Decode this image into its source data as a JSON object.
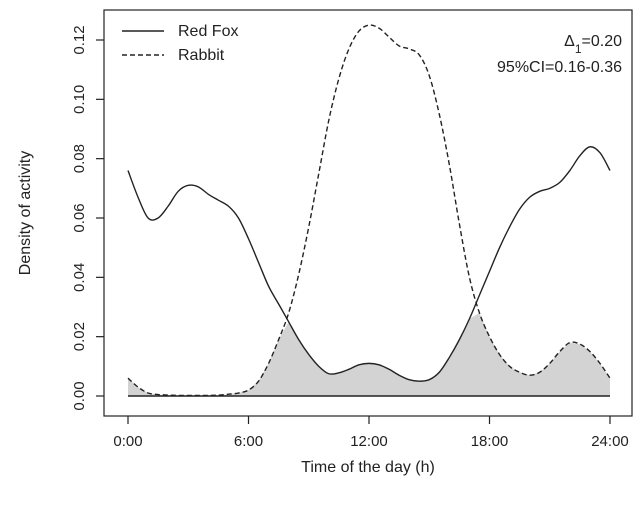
{
  "chart_data": {
    "type": "line",
    "title": "",
    "xlabel": "Time of the day (h)",
    "ylabel": "Density of activity",
    "xlim": [
      0,
      24
    ],
    "ylim": [
      0,
      0.125
    ],
    "x_ticks": [
      0,
      6,
      12,
      18,
      24
    ],
    "x_tick_labels": [
      "0:00",
      "6:00",
      "12:00",
      "18:00",
      "24:00"
    ],
    "y_ticks": [
      0,
      0.02,
      0.04,
      0.06,
      0.08,
      0.1,
      0.12
    ],
    "y_tick_labels": [
      "0.00",
      "0.02",
      "0.04",
      "0.06",
      "0.08",
      "0.10",
      "0.12"
    ],
    "grid": false,
    "legend_position": "top-left",
    "overlap_fill_color": "#d3d3d3",
    "line_color": "#222222",
    "series": [
      {
        "name": "Red Fox",
        "line_style": "solid",
        "x": [
          0,
          0.5,
          1,
          1.5,
          2,
          2.5,
          3,
          3.5,
          4,
          4.5,
          5,
          5.5,
          6,
          6.5,
          7,
          7.5,
          8,
          8.5,
          9,
          9.5,
          10,
          10.5,
          11,
          11.5,
          12,
          12.5,
          13,
          13.5,
          14,
          14.5,
          15,
          15.5,
          16,
          16.5,
          17,
          17.5,
          18,
          18.5,
          19,
          19.5,
          20,
          20.5,
          21,
          21.5,
          22,
          22.5,
          23,
          23.5,
          24
        ],
        "y": [
          0.076,
          0.067,
          0.06,
          0.06,
          0.064,
          0.069,
          0.071,
          0.0705,
          0.068,
          0.066,
          0.064,
          0.06,
          0.053,
          0.045,
          0.037,
          0.031,
          0.025,
          0.019,
          0.014,
          0.01,
          0.0075,
          0.0078,
          0.009,
          0.0105,
          0.011,
          0.0105,
          0.009,
          0.007,
          0.0055,
          0.005,
          0.0055,
          0.008,
          0.013,
          0.019,
          0.026,
          0.034,
          0.042,
          0.05,
          0.057,
          0.063,
          0.067,
          0.069,
          0.07,
          0.072,
          0.076,
          0.081,
          0.084,
          0.082,
          0.076
        ]
      },
      {
        "name": "Rabbit",
        "line_style": "dashed",
        "x": [
          0,
          0.5,
          1,
          1.5,
          2,
          2.5,
          3,
          3.5,
          4,
          4.5,
          5,
          5.5,
          6,
          6.5,
          7,
          7.5,
          8,
          8.5,
          9,
          9.5,
          10,
          10.5,
          11,
          11.5,
          12,
          12.5,
          13,
          13.5,
          14,
          14.5,
          15,
          15.5,
          16,
          16.5,
          17,
          17.5,
          18,
          18.5,
          19,
          19.5,
          20,
          20.5,
          21,
          21.5,
          22,
          22.5,
          23,
          23.5,
          24
        ],
        "y": [
          0.006,
          0.003,
          0.001,
          0.0005,
          0.0003,
          0.0002,
          0.0002,
          0.0002,
          0.0002,
          0.0003,
          0.0006,
          0.001,
          0.002,
          0.005,
          0.011,
          0.019,
          0.028,
          0.041,
          0.057,
          0.075,
          0.093,
          0.107,
          0.117,
          0.123,
          0.125,
          0.124,
          0.121,
          0.118,
          0.117,
          0.115,
          0.108,
          0.095,
          0.078,
          0.058,
          0.04,
          0.028,
          0.02,
          0.014,
          0.01,
          0.008,
          0.007,
          0.008,
          0.011,
          0.015,
          0.018,
          0.0175,
          0.015,
          0.011,
          0.006
        ]
      }
    ],
    "annotations": [
      {
        "text": "Δ",
        "subscript": "1",
        "rest": "=0.20"
      },
      {
        "text": "95%CI=0.16-0.36"
      }
    ]
  }
}
